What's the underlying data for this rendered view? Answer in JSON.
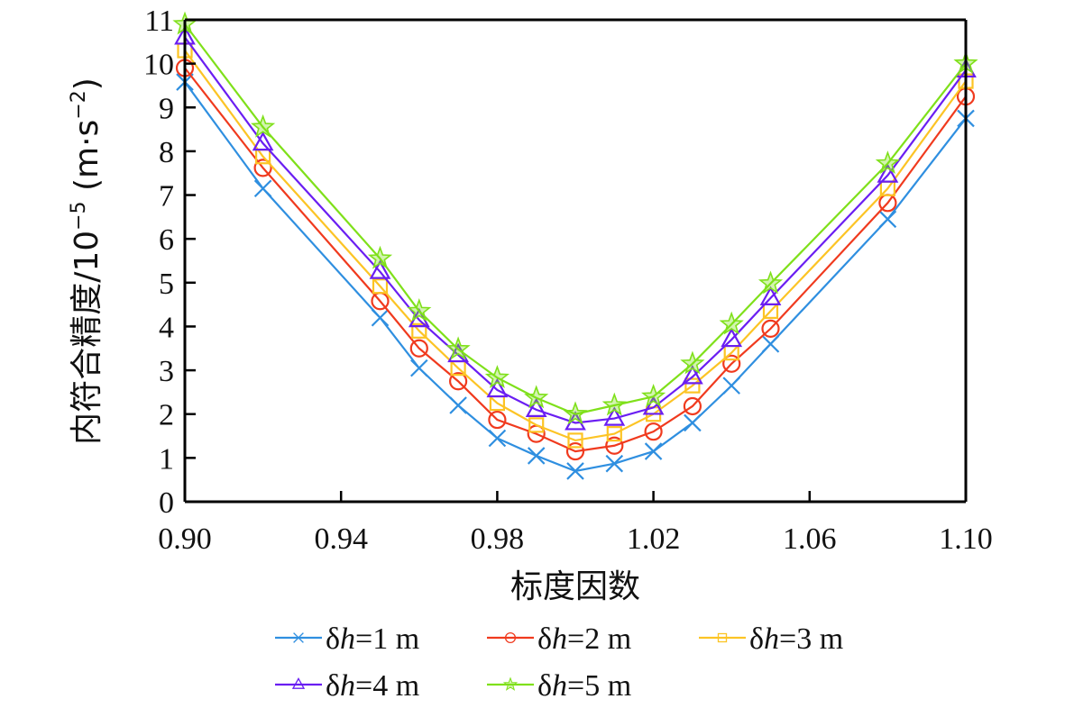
{
  "chart_data": {
    "type": "line",
    "title": "",
    "xlabel": "标度因数",
    "ylabel": {
      "prefix": "内符合精度/10",
      "exponent": "−5",
      "unit_open": " (m·s",
      "unit_exponent": "−2",
      "unit_close": ")"
    },
    "xlim": [
      0.9,
      1.1
    ],
    "ylim": [
      0,
      11
    ],
    "xticks": [
      0.9,
      0.94,
      0.98,
      1.02,
      1.06,
      1.1
    ],
    "xtick_labels": [
      "0.90",
      "0.94",
      "0.98",
      "1.02",
      "1.06",
      "1.10"
    ],
    "yticks": [
      0,
      1,
      2,
      3,
      4,
      5,
      6,
      7,
      8,
      9,
      10,
      11
    ],
    "ytick_labels": [
      "0",
      "1",
      "2",
      "3",
      "4",
      "5",
      "6",
      "7",
      "8",
      "9",
      "10",
      "11"
    ],
    "grid": false,
    "legend_position": "bottom",
    "x": [
      0.9,
      0.92,
      0.95,
      0.96,
      0.97,
      0.98,
      0.99,
      1.0,
      1.01,
      1.02,
      1.03,
      1.04,
      1.05,
      1.08,
      1.1
    ],
    "series": [
      {
        "name": "δh=1 m",
        "label_prefix": "δ",
        "label_var": "h",
        "label_suffix": "=1 m",
        "color": "#2f8fe0",
        "marker": "x",
        "values": [
          9.58,
          7.15,
          4.2,
          3.05,
          2.2,
          1.45,
          1.05,
          0.7,
          0.87,
          1.15,
          1.8,
          2.65,
          3.6,
          6.45,
          8.75
        ]
      },
      {
        "name": "δh=2 m",
        "label_prefix": "δ",
        "label_var": "h",
        "label_suffix": "=2 m",
        "color": "#f03a1e",
        "marker": "circle",
        "values": [
          9.9,
          7.62,
          4.58,
          3.5,
          2.75,
          1.87,
          1.55,
          1.15,
          1.28,
          1.6,
          2.18,
          3.15,
          3.95,
          6.82,
          9.25
        ]
      },
      {
        "name": "δh=3 m",
        "label_prefix": "δ",
        "label_var": "h",
        "label_suffix": "=3 m",
        "color": "#fcc425",
        "marker": "square",
        "values": [
          10.3,
          7.88,
          4.92,
          3.9,
          3.05,
          2.25,
          1.75,
          1.4,
          1.55,
          2.0,
          2.65,
          3.4,
          4.35,
          7.15,
          9.6
        ]
      },
      {
        "name": "δh=4 m",
        "label_prefix": "δ",
        "label_var": "h",
        "label_suffix": "=4 m",
        "color": "#6a1ef2",
        "marker": "triangle",
        "values": [
          10.6,
          8.18,
          5.25,
          4.15,
          3.35,
          2.55,
          2.1,
          1.8,
          1.9,
          2.15,
          2.85,
          3.7,
          4.65,
          7.45,
          9.85
        ]
      },
      {
        "name": "δh=5 m",
        "label_prefix": "δ",
        "label_var": "h",
        "label_suffix": "=5 m",
        "color": "#7fe01a",
        "marker": "star",
        "values": [
          10.9,
          8.55,
          5.55,
          4.35,
          3.48,
          2.83,
          2.37,
          2.0,
          2.2,
          2.4,
          3.15,
          4.05,
          4.98,
          7.72,
          10.0
        ]
      }
    ]
  }
}
